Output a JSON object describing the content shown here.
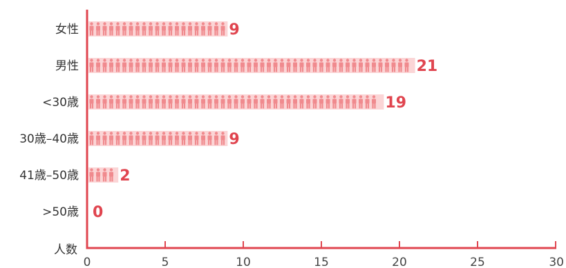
{
  "chart_data": {
    "type": "bar",
    "orientation": "horizontal",
    "categories": [
      "女性",
      "男性",
      "<30歳",
      "30歳–40歳",
      "41歳–50歳",
      ">50歳"
    ],
    "values": [
      9,
      21,
      19,
      9,
      2,
      0
    ],
    "ylabel": "人数",
    "xlim": [
      0,
      30
    ],
    "xticks": [
      0,
      5,
      10,
      15,
      20,
      25,
      30
    ],
    "grid": false,
    "mark_style": "person-icon-pictogram"
  },
  "colors": {
    "axis": "#e0454f",
    "bar_bg": "#fbd5d6",
    "icon": "#f08a8e",
    "value_label": "#e0454f"
  }
}
